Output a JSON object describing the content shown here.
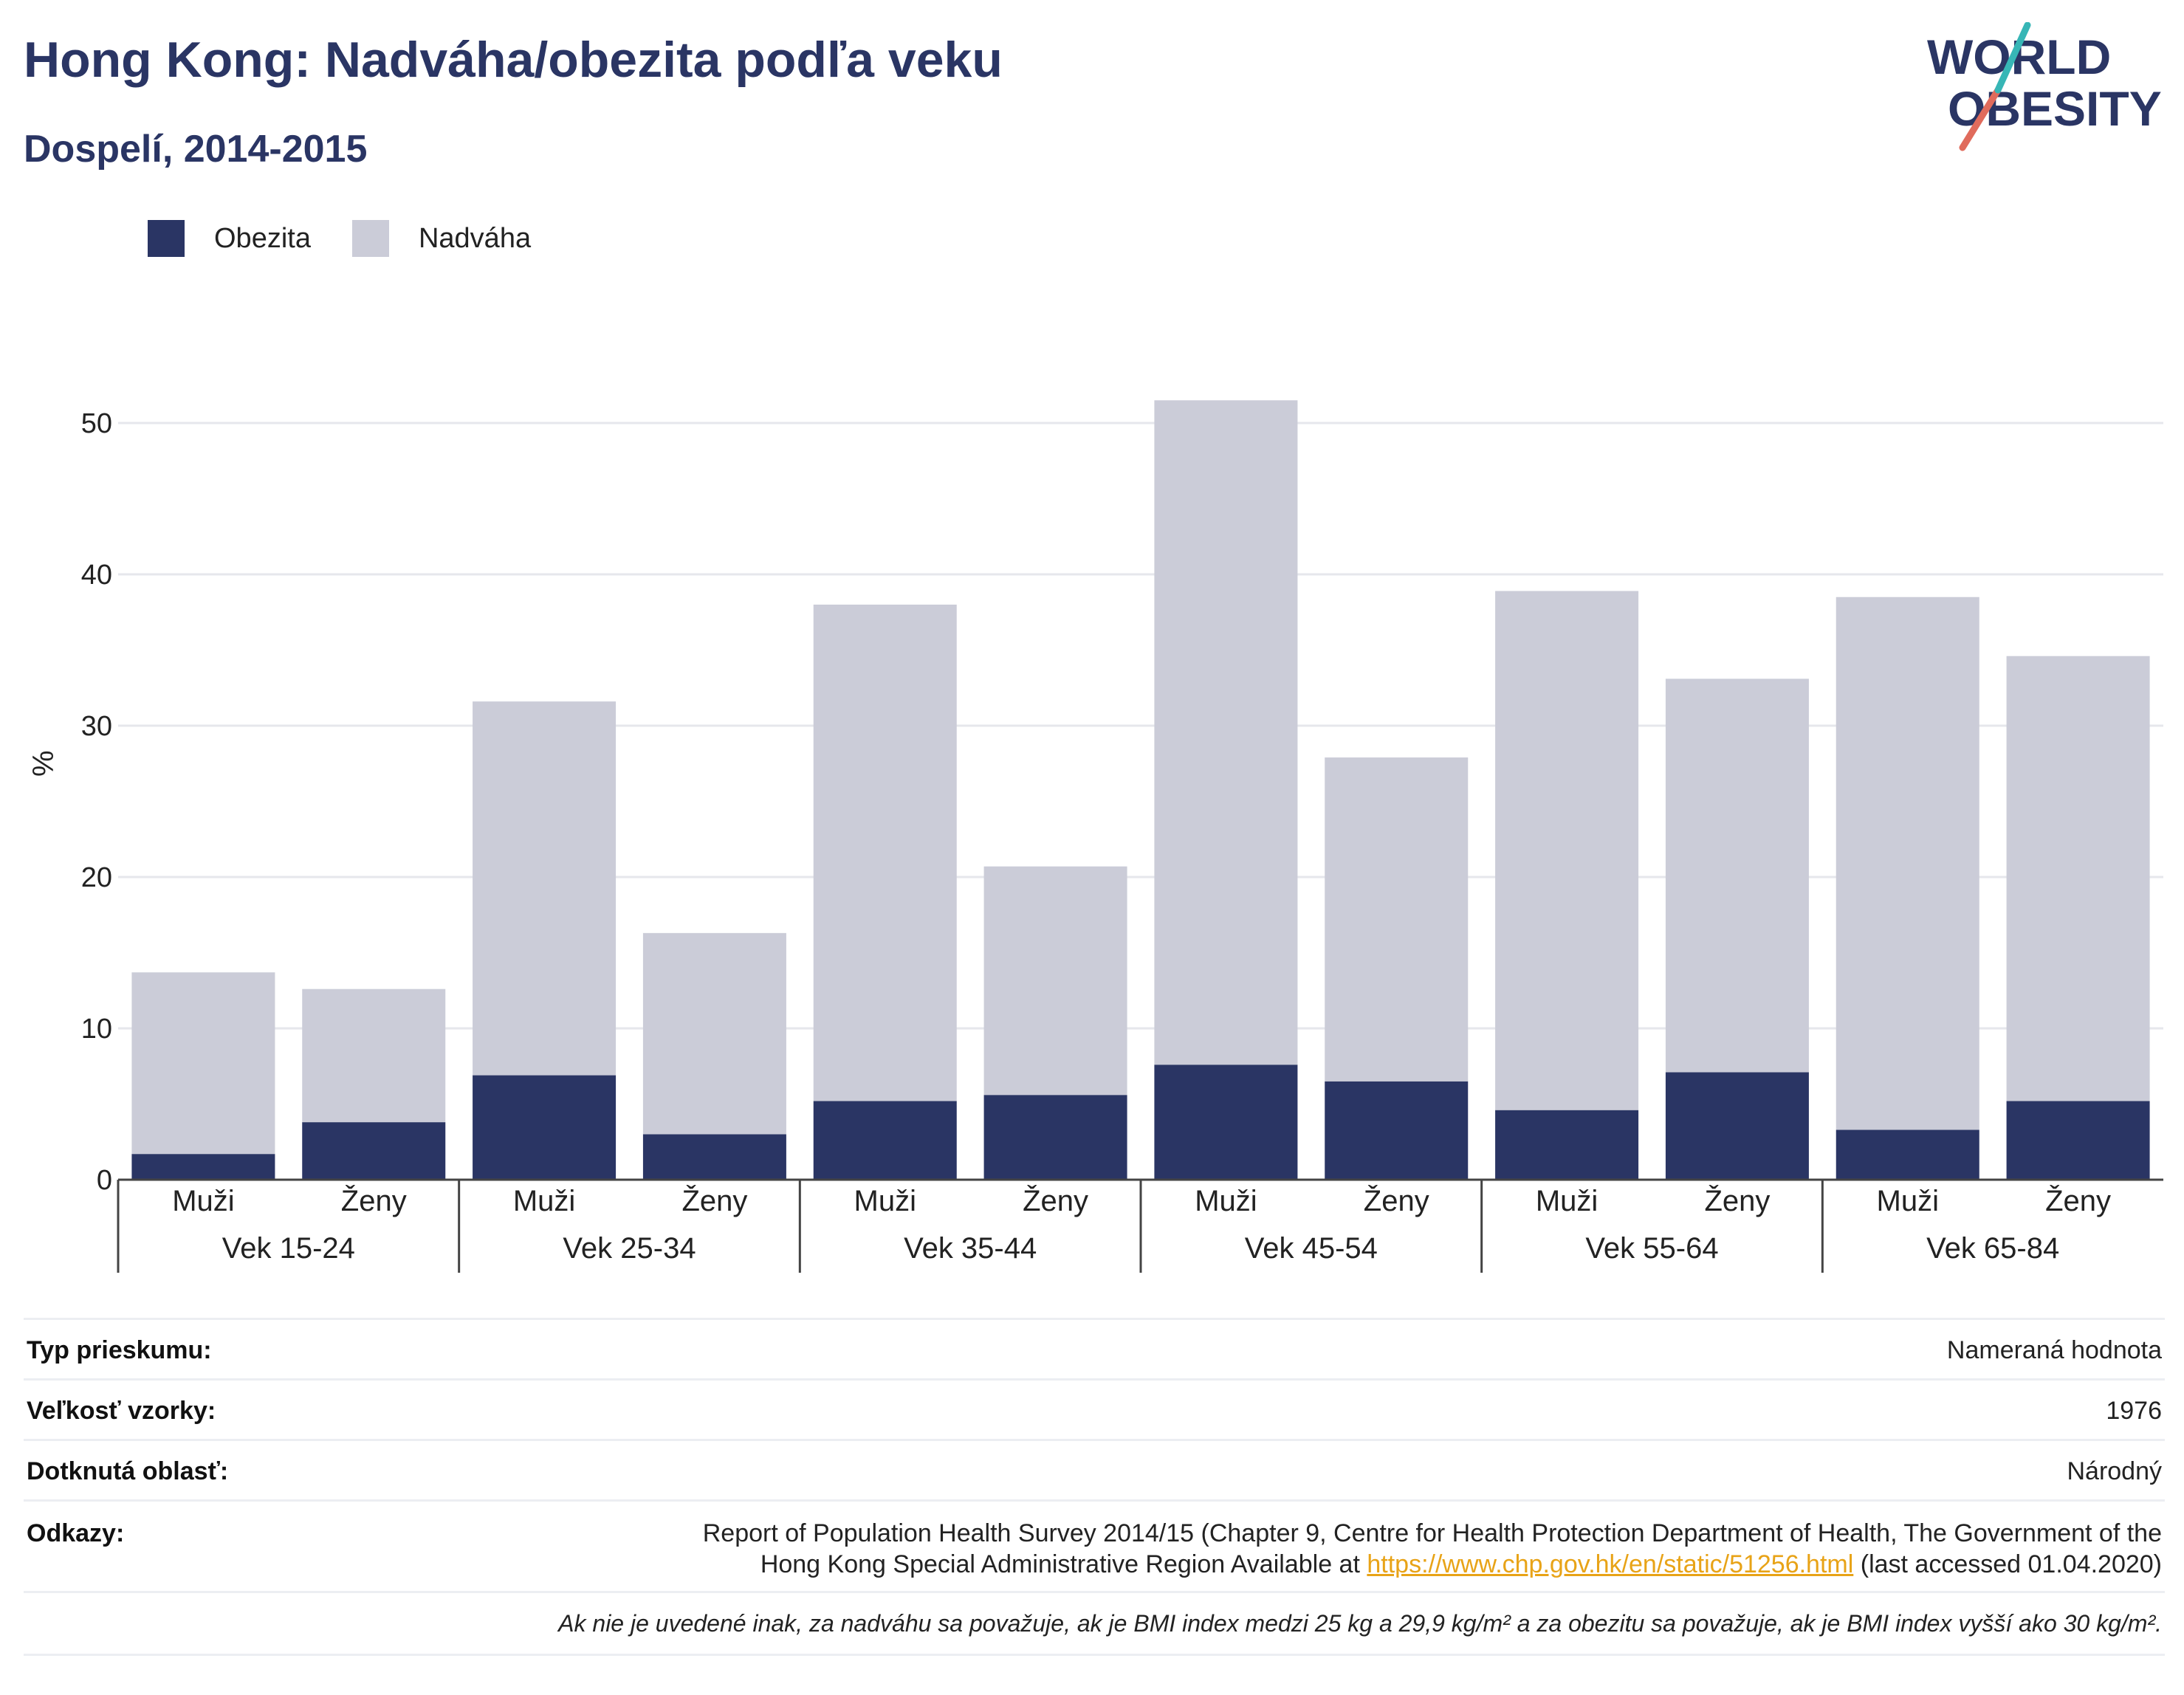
{
  "title": "Hong Kong: Nadváha/obezita podľa veku",
  "subtitle": "Dospelí, 2014-2015",
  "logo": {
    "line1": "WORLD",
    "line2": "OBESITY"
  },
  "colors": {
    "obesity": "#2a3564",
    "overweight": "#cbccd8",
    "title": "#2a3564",
    "link": "#e8a317",
    "accent_teal": "#37b6b6",
    "accent_coral": "#e06b5c"
  },
  "chart_data": {
    "type": "bar",
    "stacked": true,
    "ylabel": "%",
    "ylim": [
      0,
      55
    ],
    "yticks": [
      0,
      10,
      20,
      30,
      40,
      50
    ],
    "grid": true,
    "legend_position": "top-left",
    "groups": [
      {
        "label": "Vek 15-24",
        "categories": [
          "Muži",
          "Ženy"
        ]
      },
      {
        "label": "Vek 25-34",
        "categories": [
          "Muži",
          "Ženy"
        ]
      },
      {
        "label": "Vek 35-44",
        "categories": [
          "Muži",
          "Ženy"
        ]
      },
      {
        "label": "Vek 45-54",
        "categories": [
          "Muži",
          "Ženy"
        ]
      },
      {
        "label": "Vek 55-64",
        "categories": [
          "Muži",
          "Ženy"
        ]
      },
      {
        "label": "Vek 65-84",
        "categories": [
          "Muži",
          "Ženy"
        ]
      }
    ],
    "series": [
      {
        "name": "Obezita",
        "values": [
          1.7,
          3.8,
          6.9,
          3.0,
          5.2,
          5.6,
          7.6,
          6.5,
          4.6,
          7.1,
          3.3,
          5.2
        ]
      },
      {
        "name": "Nadváha",
        "values": [
          12.0,
          8.8,
          24.7,
          13.3,
          32.8,
          15.1,
          43.9,
          21.4,
          34.3,
          26.0,
          35.2,
          29.4
        ]
      }
    ]
  },
  "info": {
    "survey_type_label": "Typ prieskumu:",
    "survey_type_value": "Nameraná hodnota",
    "sample_size_label": "Veľkosť vzorky:",
    "sample_size_value": "1976",
    "area_label": "Dotknutá oblasť:",
    "area_value": "Národný",
    "refs_label": "Odkazy:",
    "refs_line1": "Report of Population Health Survey 2014/15 (Chapter 9, Centre for Health Protection Department of Health, The Government of the",
    "refs_line2_pre": "Hong Kong Special Administrative Region Available at ",
    "refs_link": "https://www.chp.gov.hk/en/static/51256.html",
    "refs_line2_post": " (last accessed 01.04.2020)",
    "note": "Ak nie je uvedené inak, za nadváhu sa považuje, ak je BMI index medzi 25 kg a 29,9 kg/m² a za obezitu sa považuje, ak je BMI index vyšší ako 30 kg/m²."
  }
}
